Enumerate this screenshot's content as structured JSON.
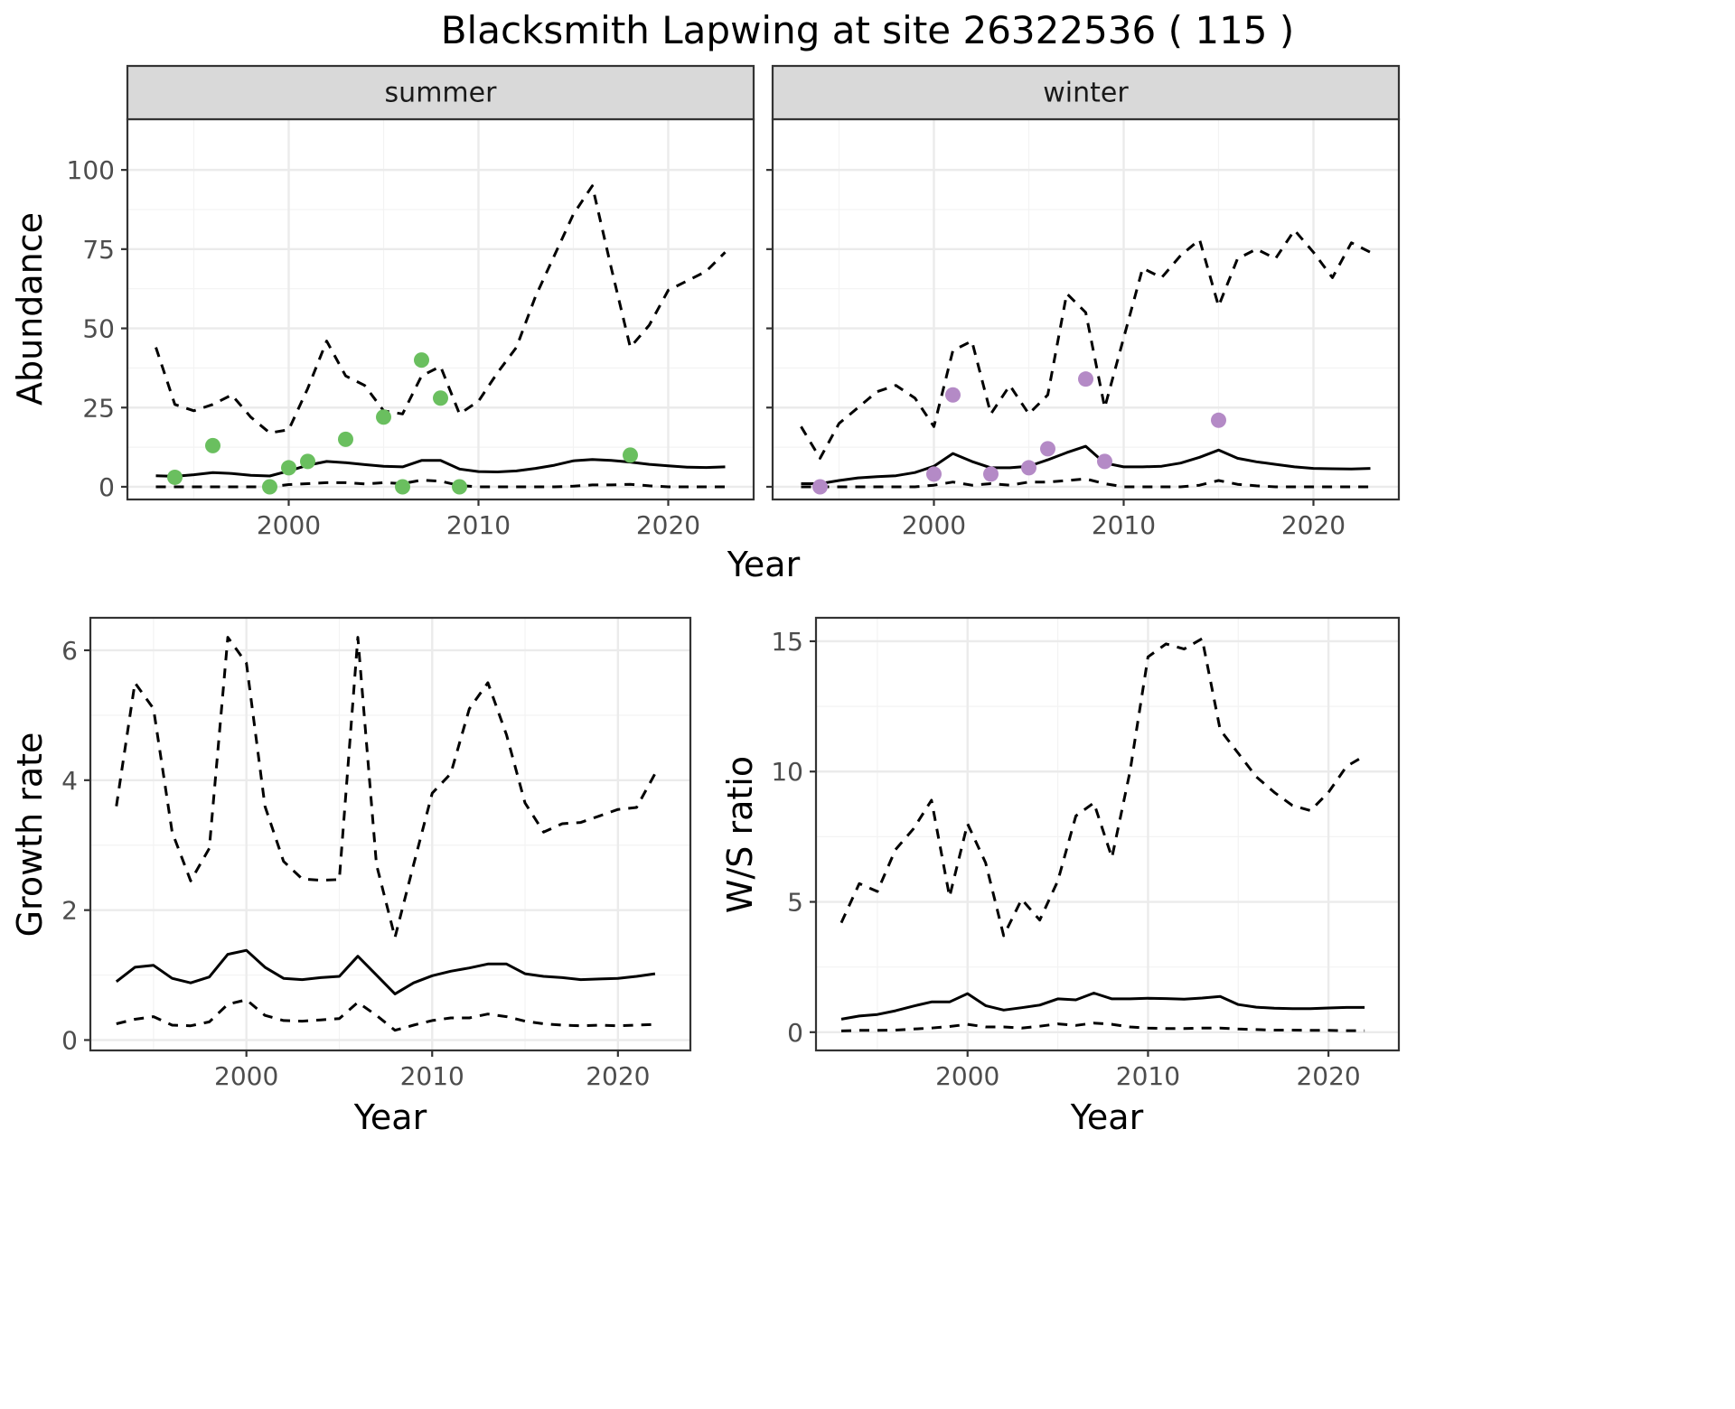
{
  "figure": {
    "title": "Blacksmith Lapwing at site 26322536 ( 115 )"
  },
  "chart_data": [
    {
      "id": "abundance-summer",
      "type": "line",
      "strip_label": "summer",
      "xlabel": "Year",
      "ylabel": "Abundance",
      "xlim": [
        1991.5,
        2024.5
      ],
      "ylim": [
        -4,
        116
      ],
      "x_ticks": [
        2000,
        2010,
        2020
      ],
      "y_ticks": [
        0,
        25,
        50,
        75,
        100
      ],
      "x_ticks_minor": [
        1995,
        2005,
        2015
      ],
      "y_ticks_minor": [
        12.5,
        37.5,
        62.5,
        87.5
      ],
      "grid": true,
      "series": [
        {
          "role": "estimate",
          "line_style": "solid",
          "color": "#000000",
          "x": [
            1993,
            1994,
            1995,
            1996,
            1997,
            1998,
            1999,
            2000,
            2001,
            2002,
            2003,
            2004,
            2005,
            2006,
            2007,
            2008,
            2009,
            2010,
            2011,
            2012,
            2013,
            2014,
            2015,
            2016,
            2017,
            2018,
            2019,
            2020,
            2021,
            2022,
            2023
          ],
          "y": [
            3.5,
            3.3,
            3.8,
            4.5,
            4.2,
            3.6,
            3.4,
            5,
            6.8,
            8,
            7.6,
            7,
            6.5,
            6.3,
            8.3,
            8.3,
            5.6,
            4.8,
            4.7,
            5,
            5.8,
            6.8,
            8.2,
            8.6,
            8.3,
            7.8,
            7.1,
            6.6,
            6.2,
            6.1,
            6.3
          ]
        },
        {
          "role": "upper",
          "line_style": "dashed",
          "color": "#000000",
          "x": [
            1993,
            1994,
            1995,
            1996,
            1997,
            1998,
            1999,
            2000,
            2001,
            2002,
            2003,
            2004,
            2005,
            2006,
            2007,
            2008,
            2009,
            2010,
            2011,
            2012,
            2013,
            2014,
            2015,
            2016,
            2017,
            2018,
            2019,
            2020,
            2021,
            2022,
            2023
          ],
          "y": [
            44,
            26,
            24,
            26,
            29,
            22,
            17,
            18,
            31,
            46,
            35,
            32,
            24,
            23,
            35,
            38,
            23,
            27,
            36,
            44,
            60,
            73,
            86,
            95,
            69,
            44,
            51,
            62,
            65,
            68,
            74
          ]
        },
        {
          "role": "lower",
          "line_style": "dashed",
          "color": "#000000",
          "x": [
            1993,
            1994,
            1995,
            1996,
            1997,
            1998,
            1999,
            2000,
            2001,
            2002,
            2003,
            2004,
            2005,
            2006,
            2007,
            2008,
            2009,
            2010,
            2011,
            2012,
            2013,
            2014,
            2015,
            2016,
            2017,
            2018,
            2019,
            2020,
            2021,
            2022,
            2023
          ],
          "y": [
            0,
            0,
            0,
            0,
            0,
            0,
            0,
            0.7,
            1,
            1.3,
            1.3,
            0.9,
            1.3,
            1,
            2.1,
            1.8,
            0.4,
            0,
            0,
            0,
            0,
            0,
            0.2,
            0.6,
            0.6,
            0.8,
            0.3,
            0,
            0,
            0,
            0
          ]
        },
        {
          "role": "observed",
          "type": "scatter",
          "color": "#6abf5f",
          "x": [
            1994,
            1996,
            1999,
            2000,
            2001,
            2003,
            2005,
            2006,
            2007,
            2008,
            2009,
            2018
          ],
          "y": [
            3,
            13,
            0,
            6,
            8,
            15,
            22,
            0,
            40,
            28,
            0,
            10
          ]
        }
      ]
    },
    {
      "id": "abundance-winter",
      "type": "line",
      "strip_label": "winter",
      "xlim": [
        1991.5,
        2024.5
      ],
      "ylim": [
        -4,
        116
      ],
      "x_ticks": [
        2000,
        2010,
        2020
      ],
      "y_ticks": [
        0,
        25,
        50,
        75,
        100
      ],
      "x_ticks_minor": [
        1995,
        2005,
        2015
      ],
      "y_ticks_minor": [
        12.5,
        37.5,
        62.5,
        87.5
      ],
      "grid": true,
      "series": [
        {
          "role": "estimate",
          "line_style": "solid",
          "color": "#000000",
          "x": [
            1993,
            1994,
            1995,
            1996,
            1997,
            1998,
            1999,
            2000,
            2001,
            2002,
            2003,
            2004,
            2005,
            2006,
            2007,
            2008,
            2009,
            2010,
            2011,
            2012,
            2013,
            2014,
            2015,
            2016,
            2017,
            2018,
            2019,
            2020,
            2021,
            2022,
            2023
          ],
          "y": [
            1,
            1,
            2,
            2.8,
            3.2,
            3.5,
            4.5,
            6.5,
            10.5,
            8,
            6,
            6,
            6.5,
            8.5,
            10.8,
            12.8,
            7.5,
            6.3,
            6.3,
            6.5,
            7.5,
            9.3,
            11.6,
            9,
            7.9,
            7.1,
            6.3,
            5.8,
            5.7,
            5.6,
            5.8
          ]
        },
        {
          "role": "upper",
          "line_style": "dashed",
          "color": "#000000",
          "x": [
            1993,
            1994,
            1995,
            1996,
            1997,
            1998,
            1999,
            2000,
            2001,
            2002,
            2003,
            2004,
            2005,
            2006,
            2007,
            2008,
            2009,
            2010,
            2011,
            2012,
            2013,
            2014,
            2015,
            2016,
            2017,
            2018,
            2019,
            2020,
            2021,
            2022,
            2023
          ],
          "y": [
            19,
            9,
            20,
            25,
            30,
            32,
            28,
            19,
            43,
            46,
            23,
            32,
            23,
            29,
            61,
            55,
            25,
            47,
            69,
            66,
            73,
            78,
            57,
            72,
            75,
            72,
            81,
            74,
            66,
            77,
            74
          ]
        },
        {
          "role": "lower",
          "line_style": "dashed",
          "color": "#000000",
          "x": [
            1993,
            1994,
            1995,
            1996,
            1997,
            1998,
            1999,
            2000,
            2001,
            2002,
            2003,
            2004,
            2005,
            2006,
            2007,
            2008,
            2009,
            2010,
            2011,
            2012,
            2013,
            2014,
            2015,
            2016,
            2017,
            2018,
            2019,
            2020,
            2021,
            2022,
            2023
          ],
          "y": [
            0,
            0,
            0,
            0,
            0,
            0,
            0,
            0.5,
            1.5,
            0.5,
            1,
            0.5,
            1.5,
            1.5,
            2,
            2.5,
            1,
            0,
            0,
            0,
            0,
            0.5,
            2,
            0.8,
            0.3,
            0,
            0,
            0,
            0,
            0,
            0
          ]
        },
        {
          "role": "observed",
          "type": "scatter",
          "color": "#b48ac6",
          "x": [
            1994,
            2000,
            2001,
            2003,
            2005,
            2006,
            2008,
            2009,
            2015
          ],
          "y": [
            0,
            4,
            29,
            4,
            6,
            12,
            34,
            8,
            21
          ]
        }
      ]
    },
    {
      "id": "growth-rate",
      "type": "line",
      "xlabel": "Year",
      "ylabel": "Growth rate",
      "xlim": [
        1991.6,
        2023.9
      ],
      "ylim": [
        -0.16,
        6.5
      ],
      "x_ticks": [
        2000,
        2010,
        2020
      ],
      "y_ticks": [
        0,
        2,
        4,
        6
      ],
      "x_ticks_minor": [
        1995,
        2005,
        2015
      ],
      "y_ticks_minor": [
        1,
        3,
        5
      ],
      "grid": true,
      "series": [
        {
          "role": "estimate",
          "line_style": "solid",
          "color": "#000000",
          "x": [
            1993,
            1994,
            1995,
            1996,
            1997,
            1998,
            1999,
            2000,
            2001,
            2002,
            2003,
            2004,
            2005,
            2006,
            2007,
            2008,
            2009,
            2010,
            2011,
            2012,
            2013,
            2014,
            2015,
            2016,
            2017,
            2018,
            2019,
            2020,
            2021,
            2022
          ],
          "y": [
            0.9,
            1.12,
            1.15,
            0.95,
            0.88,
            0.97,
            1.32,
            1.38,
            1.12,
            0.95,
            0.93,
            0.96,
            0.98,
            1.29,
            1,
            0.71,
            0.88,
            0.99,
            1.06,
            1.11,
            1.17,
            1.17,
            1.02,
            0.98,
            0.96,
            0.93,
            0.94,
            0.95,
            0.98,
            1.02
          ]
        },
        {
          "role": "upper",
          "line_style": "dashed",
          "color": "#000000",
          "x": [
            1993,
            1994,
            1995,
            1996,
            1997,
            1998,
            1999,
            2000,
            2001,
            2002,
            2003,
            2004,
            2005,
            2006,
            2007,
            2008,
            2009,
            2010,
            2011,
            2012,
            2013,
            2014,
            2015,
            2016,
            2017,
            2018,
            2019,
            2020,
            2021,
            2022
          ],
          "y": [
            3.6,
            5.5,
            5.1,
            3.2,
            2.45,
            2.95,
            6.2,
            5.8,
            3.6,
            2.75,
            2.48,
            2.46,
            2.47,
            6.2,
            2.7,
            1.58,
            2.7,
            3.8,
            4.1,
            5.1,
            5.5,
            4.7,
            3.65,
            3.2,
            3.33,
            3.35,
            3.45,
            3.55,
            3.58,
            4.1
          ]
        },
        {
          "role": "lower",
          "line_style": "dashed",
          "color": "#000000",
          "x": [
            1993,
            1994,
            1995,
            1996,
            1997,
            1998,
            1999,
            2000,
            2001,
            2002,
            2003,
            2004,
            2005,
            2006,
            2007,
            2008,
            2009,
            2010,
            2011,
            2012,
            2013,
            2014,
            2015,
            2016,
            2017,
            2018,
            2019,
            2020,
            2021,
            2022
          ],
          "y": [
            0.25,
            0.32,
            0.36,
            0.23,
            0.22,
            0.28,
            0.55,
            0.62,
            0.38,
            0.3,
            0.29,
            0.31,
            0.33,
            0.58,
            0.38,
            0.15,
            0.23,
            0.3,
            0.34,
            0.34,
            0.4,
            0.36,
            0.29,
            0.25,
            0.23,
            0.22,
            0.23,
            0.22,
            0.23,
            0.24
          ]
        }
      ]
    },
    {
      "id": "ws-ratio",
      "type": "line",
      "xlabel": "Year",
      "ylabel": "W/S ratio",
      "xlim": [
        1991.6,
        2023.9
      ],
      "ylim": [
        -0.7,
        15.9
      ],
      "x_ticks": [
        2000,
        2010,
        2020
      ],
      "y_ticks": [
        0,
        5,
        10,
        15
      ],
      "x_ticks_minor": [
        1995,
        2005,
        2015
      ],
      "y_ticks_minor": [
        2.5,
        7.5,
        12.5
      ],
      "grid": true,
      "series": [
        {
          "role": "estimate",
          "line_style": "solid",
          "color": "#000000",
          "x": [
            1993,
            1994,
            1995,
            1996,
            1997,
            1998,
            1999,
            2000,
            2001,
            2002,
            2003,
            2004,
            2005,
            2006,
            2007,
            2008,
            2009,
            2010,
            2011,
            2012,
            2013,
            2014,
            2015,
            2016,
            2017,
            2018,
            2019,
            2020,
            2021,
            2022
          ],
          "y": [
            0.5,
            0.62,
            0.68,
            0.82,
            1,
            1.16,
            1.16,
            1.48,
            1.02,
            0.85,
            0.94,
            1.04,
            1.28,
            1.24,
            1.5,
            1.28,
            1.28,
            1.3,
            1.29,
            1.27,
            1.31,
            1.37,
            1.06,
            0.96,
            0.92,
            0.9,
            0.9,
            0.93,
            0.95,
            0.95
          ]
        },
        {
          "role": "upper",
          "line_style": "dashed",
          "color": "#000000",
          "x": [
            1993,
            1994,
            1995,
            1996,
            1997,
            1998,
            1999,
            2000,
            2001,
            2002,
            2003,
            2004,
            2005,
            2006,
            2007,
            2008,
            2009,
            2010,
            2011,
            2012,
            2013,
            2014,
            2015,
            2016,
            2017,
            2018,
            2019,
            2020,
            2021,
            2022
          ],
          "y": [
            4.2,
            5.7,
            5.4,
            7,
            7.8,
            8.9,
            5.2,
            8,
            6.5,
            3.7,
            5.1,
            4.3,
            5.8,
            8.3,
            8.8,
            6.7,
            10,
            14.4,
            14.9,
            14.7,
            15.1,
            11.6,
            10.7,
            9.8,
            9.2,
            8.7,
            8.5,
            9.2,
            10.2,
            10.6
          ]
        },
        {
          "role": "lower",
          "line_style": "dashed",
          "color": "#000000",
          "x": [
            1993,
            1994,
            1995,
            1996,
            1997,
            1998,
            1999,
            2000,
            2001,
            2002,
            2003,
            2004,
            2005,
            2006,
            2007,
            2008,
            2009,
            2010,
            2011,
            2012,
            2013,
            2014,
            2015,
            2016,
            2017,
            2018,
            2019,
            2020,
            2021,
            2022
          ],
          "y": [
            0.05,
            0.07,
            0.07,
            0.08,
            0.12,
            0.16,
            0.22,
            0.3,
            0.2,
            0.2,
            0.16,
            0.23,
            0.32,
            0.26,
            0.35,
            0.3,
            0.2,
            0.16,
            0.14,
            0.14,
            0.16,
            0.16,
            0.12,
            0.1,
            0.08,
            0.08,
            0.07,
            0.07,
            0.06,
            0.06
          ]
        }
      ]
    }
  ]
}
